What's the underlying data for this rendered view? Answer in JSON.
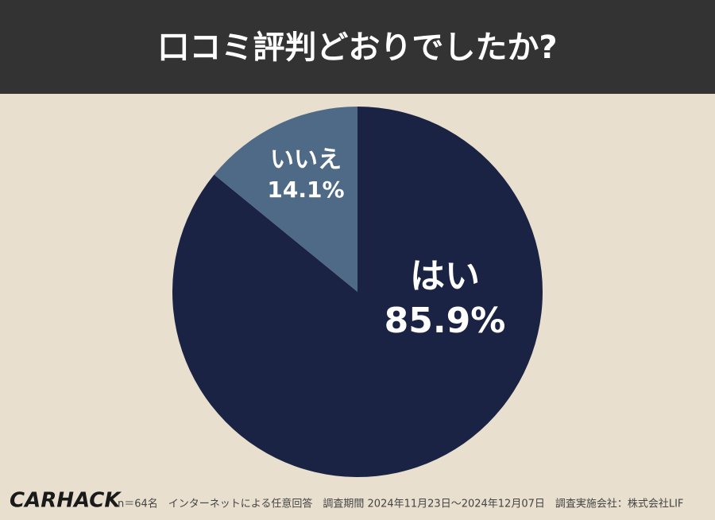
{
  "chart_data": {
    "type": "pie",
    "title": "口コミ評判どおりでしたか?",
    "categories": [
      "はい",
      "いいえ"
    ],
    "values": [
      85.9,
      14.1
    ],
    "value_labels": [
      "85.9%",
      "14.1%"
    ],
    "colors": [
      "#1b2344",
      "#4e6a86"
    ],
    "logo": "CARHACK",
    "note": "n＝64名　インターネットによる任意回答　調査期間 2024年11月23日〜2024年12月07日　調査実施会社：株式会社LIF"
  }
}
